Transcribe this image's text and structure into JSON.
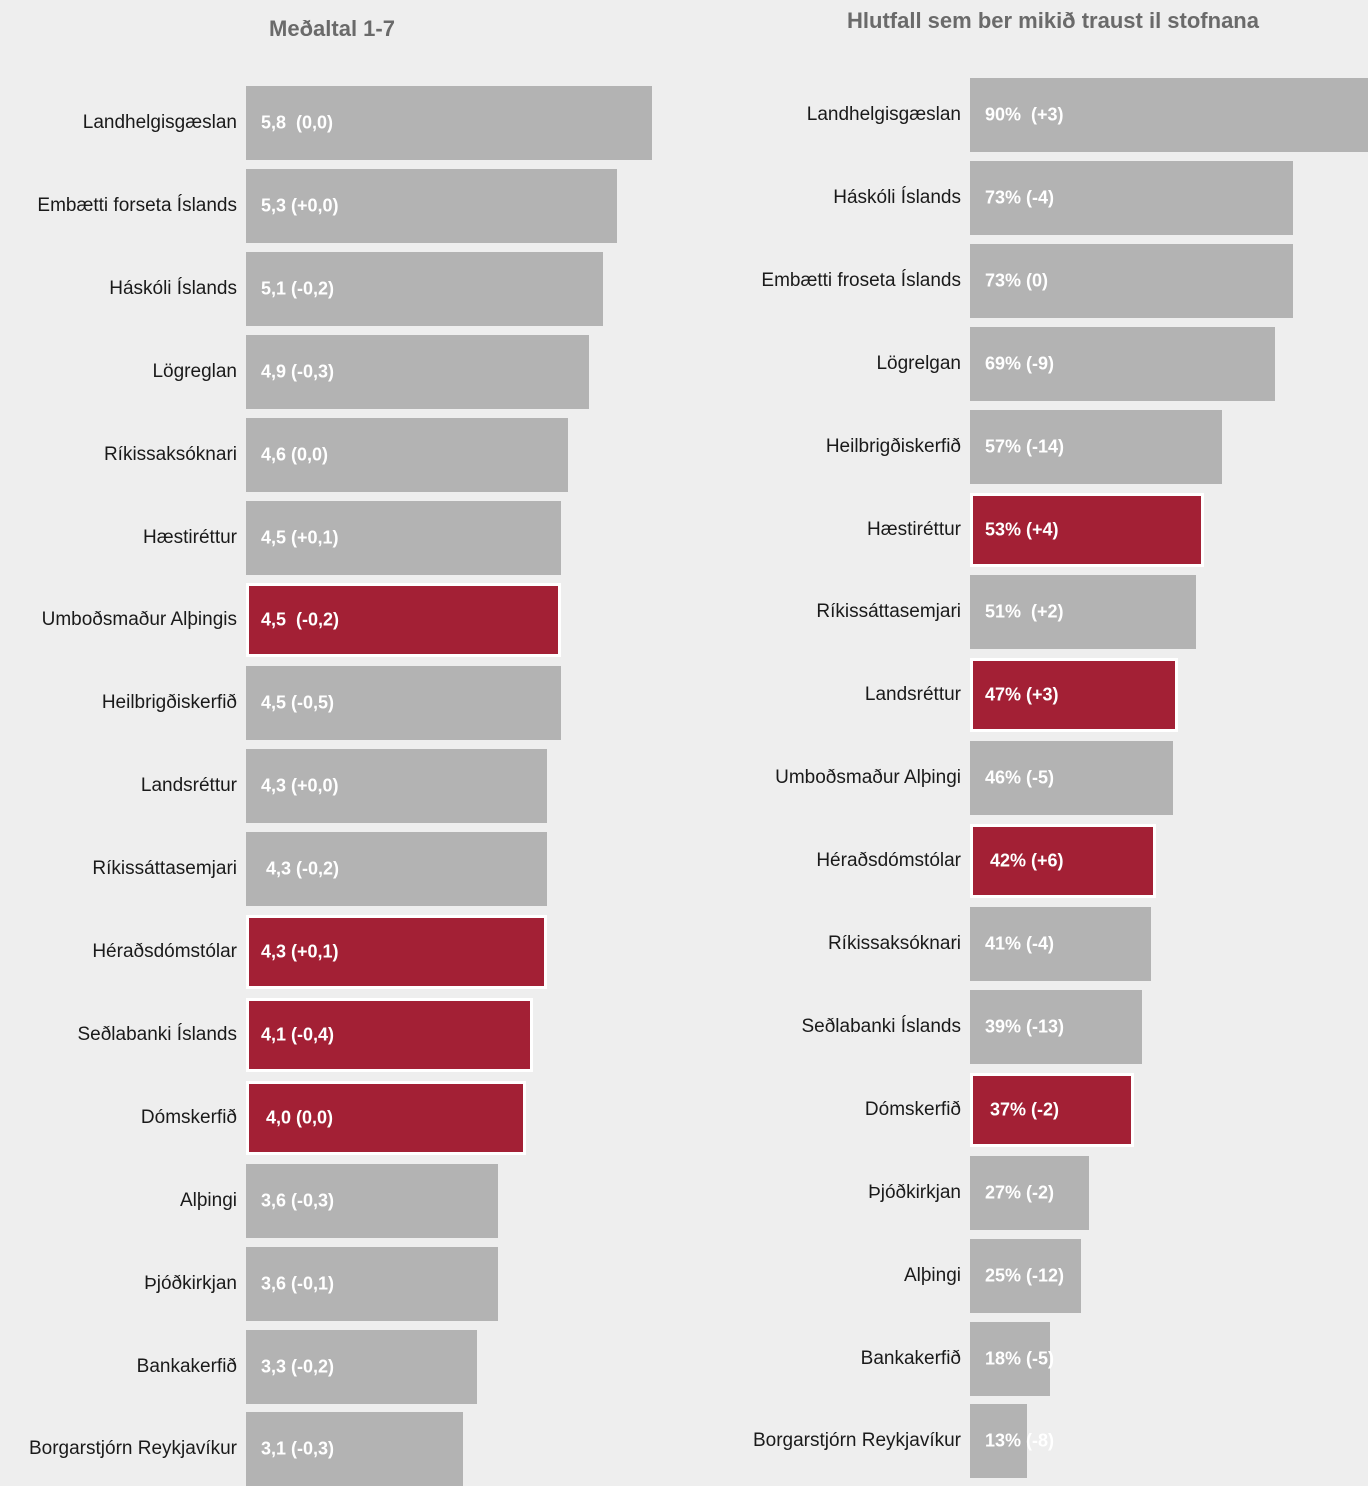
{
  "colors": {
    "background": "#eeeeee",
    "bar_default": "#b3b3b3",
    "bar_highlight": "#a32035",
    "bar_text": "#ffffff",
    "title": "#6a6a6a"
  },
  "chart_data": [
    {
      "type": "bar",
      "orientation": "horizontal",
      "title": "Meðaltal 1-7",
      "xlim": [
        0,
        7
      ],
      "grid": false,
      "categories": [
        "Landhelgisgæslan",
        "Embætti forseta Íslands",
        "Háskóli Íslands",
        "Lögreglan",
        "Ríkissaksóknari",
        "Hæstiréttur",
        "Umboðsmaður Alþingis",
        "Heilbrigðiskerfið",
        "Landsréttur",
        "Ríkissáttasemjari",
        "Héraðsdómstólar",
        "Seðlabanki Íslands",
        "Dómskerfið",
        "Alþingi",
        "Þjóðkirkjan",
        "Bankakerfið",
        "Borgarstjórn Reykjavíkur"
      ],
      "values": [
        5.8,
        5.3,
        5.1,
        4.9,
        4.6,
        4.5,
        4.5,
        4.5,
        4.3,
        4.3,
        4.3,
        4.1,
        4.0,
        3.6,
        3.6,
        3.3,
        3.1
      ],
      "data_labels": [
        "5,8  (0,0)",
        "5,3 (+0,0)",
        "5,1 (-0,2)",
        "4,9 (-0,3)",
        "4,6 (0,0)",
        "4,5 (+0,1)",
        "4,5  (-0,2)",
        "4,5 (-0,5)",
        "4,3 (+0,0)",
        " 4,3 (-0,2)",
        "4,3 (+0,1)",
        "4,1 (-0,4)",
        " 4,0 (0,0)",
        "3,6 (-0,3)",
        "3,6 (-0,1)",
        "3,3 (-0,2)",
        "3,1 (-0,3)"
      ],
      "highlighted": [
        false,
        false,
        false,
        false,
        false,
        false,
        true,
        false,
        false,
        false,
        true,
        true,
        true,
        false,
        false,
        false,
        false
      ]
    },
    {
      "type": "bar",
      "orientation": "horizontal",
      "title": "Hlutfall sem ber mikið traust il stofnana",
      "xlim": [
        0,
        100
      ],
      "grid": false,
      "categories": [
        "Landhelgisgæslan",
        "Háskóli Íslands",
        "Embætti froseta Íslands",
        "Lögrelgan",
        "Heilbrigðiskerfið",
        "Hæstiréttur",
        "Ríkissáttasemjari",
        "Landsréttur",
        "Umboðsmaður Alþingi",
        "Héraðsdómstólar",
        "Ríkissaksóknari",
        "Seðlabanki Íslands",
        "Dómskerfið",
        "Þjóðkirkjan",
        "Alþingi",
        "Bankakerfið",
        "Borgarstjórn Reykjavíkur"
      ],
      "values": [
        90,
        73,
        73,
        69,
        57,
        53,
        51,
        47,
        46,
        42,
        41,
        39,
        37,
        27,
        25,
        18,
        13
      ],
      "data_labels": [
        "90%  (+3)",
        "73% (-4)",
        "73% (0)",
        "69% (-9)",
        "57% (-14)",
        "53% (+4)",
        "51%  (+2)",
        "47% (+3)",
        "46% (-5)",
        " 42% (+6)",
        "41% (-4)",
        "39% (-13)",
        " 37% (-2)",
        "27% (-2)",
        "25% (-12)",
        "18% (-5)",
        "13% (-8)"
      ],
      "highlighted": [
        false,
        false,
        false,
        false,
        false,
        true,
        false,
        true,
        false,
        true,
        false,
        false,
        true,
        false,
        false,
        false,
        false
      ]
    }
  ]
}
